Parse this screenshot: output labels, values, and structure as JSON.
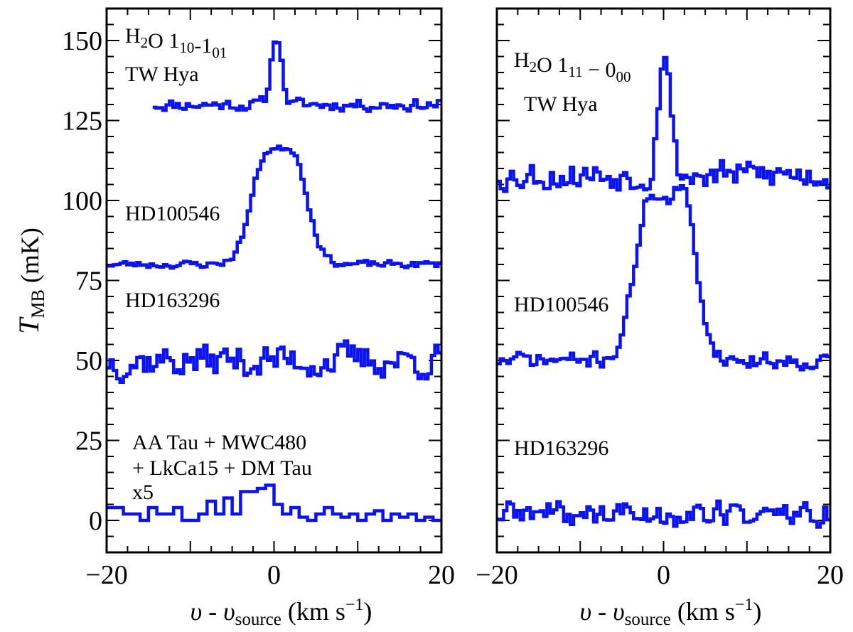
{
  "chart_data": [
    {
      "type": "line",
      "panel": "left",
      "xlim": [
        -20,
        20
      ],
      "ylim": [
        -10,
        160
      ],
      "xticks": [
        -20,
        0,
        20
      ],
      "yticks": [
        0,
        25,
        50,
        75,
        100,
        125,
        150
      ],
      "xtick_labels": [
        "−20",
        "0",
        "20"
      ],
      "ytick_labels": [
        "0",
        "25",
        "50",
        "75",
        "100",
        "125",
        "150"
      ],
      "ylabel": {
        "main": "T",
        "sub": "MB",
        "unit": "(mK)"
      },
      "xlabel": {
        "v": "υ - υ",
        "sub": "source",
        "unit": "(km s",
        "exp": "−1",
        "close": ")"
      },
      "annotations": [
        {
          "id": "l-line",
          "parts": [
            {
              "t": "H"
            },
            {
              "t": "2",
              "s": "sub"
            },
            {
              "t": "O 1"
            },
            {
              "t": "10",
              "s": "sub"
            },
            {
              "t": "-1"
            },
            {
              "t": "01",
              "s": "sub"
            }
          ]
        },
        {
          "id": "l-tw",
          "parts": [
            {
              "t": "TW Hya"
            }
          ]
        },
        {
          "id": "l-hd100",
          "parts": [
            {
              "t": "HD100546"
            }
          ]
        },
        {
          "id": "l-hd163",
          "parts": [
            {
              "t": "HD163296"
            }
          ]
        },
        {
          "id": "l-stack1",
          "parts": [
            {
              "t": "AA Tau + MWC480"
            }
          ]
        },
        {
          "id": "l-stack2",
          "parts": [
            {
              "t": "+ LkCa15 + DM Tau"
            }
          ]
        },
        {
          "id": "l-stack3",
          "parts": [
            {
              "t": "x5"
            }
          ]
        }
      ],
      "series": [
        {
          "name": "TW Hya",
          "x_start": -14.5,
          "x_end": 20,
          "baseline": 130,
          "amp": 3.0,
          "spike_x": 0.3,
          "spike_w": 0.6,
          "spike_h": 22,
          "seed": 11
        },
        {
          "name": "HD100546",
          "x_start": -20,
          "x_end": 20,
          "baseline": 80,
          "amp": 1.8,
          "peaks": [
            {
              "x": -1.2,
              "w": 1.6,
              "h": 23
            },
            {
              "x": 2.5,
              "w": 1.6,
              "h": 24
            }
          ],
          "bridge": 12,
          "seed": 23
        },
        {
          "name": "HD163296",
          "x_start": -20,
          "x_end": 20,
          "baseline": 50,
          "amp": 8.5,
          "seed": 37
        },
        {
          "name": "AA Tau + MWC480 + LkCa15 + DM Tau x5",
          "x_start": -20,
          "x_end": 20,
          "step_values": [
            4,
            4,
            2,
            2,
            0,
            4,
            2,
            2,
            4,
            0,
            0,
            2,
            6,
            2,
            7,
            2,
            9,
            9,
            10,
            11,
            5,
            2,
            4,
            1,
            0,
            2,
            4,
            2,
            1,
            2,
            0,
            2,
            3,
            0,
            2,
            1,
            2,
            0,
            1,
            0
          ]
        }
      ]
    },
    {
      "type": "line",
      "panel": "right",
      "xlim": [
        -20,
        20
      ],
      "ylim": [
        -10,
        160
      ],
      "xticks": [
        -20,
        0,
        20
      ],
      "xtick_labels": [
        "−20",
        "0",
        "20"
      ],
      "xlabel": {
        "v": "υ - υ",
        "sub": "source",
        "unit": "(km s",
        "exp": "−1",
        "close": ")"
      },
      "annotations": [
        {
          "id": "r-line",
          "parts": [
            {
              "t": "H"
            },
            {
              "t": "2",
              "s": "sub"
            },
            {
              "t": "O 1"
            },
            {
              "t": "11",
              "s": "sub"
            },
            {
              "t": " − 0"
            },
            {
              "t": "00",
              "s": "sub"
            }
          ]
        },
        {
          "id": "r-tw",
          "parts": [
            {
              "t": "TW Hya"
            }
          ]
        },
        {
          "id": "r-hd100",
          "parts": [
            {
              "t": "HD100546"
            }
          ]
        },
        {
          "id": "r-hd163",
          "parts": [
            {
              "t": "HD163296"
            }
          ]
        }
      ],
      "series": [
        {
          "name": "TW Hya",
          "x_start": -20,
          "x_end": 20,
          "baseline": 108,
          "amp": 7.5,
          "spike_x": 0.1,
          "spike_w": 0.7,
          "spike_h": 40,
          "seed": 53
        },
        {
          "name": "HD100546",
          "x_start": -20,
          "x_end": 20,
          "baseline": 50,
          "amp": 4.0,
          "peaks": [
            {
              "x": -1.8,
              "w": 1.7,
              "h": 38
            },
            {
              "x": 2.5,
              "w": 1.5,
              "h": 35
            }
          ],
          "bridge": 20,
          "seed": 71
        },
        {
          "name": "HD163296",
          "x_start": -20,
          "x_end": 20,
          "baseline": 2,
          "amp": 6.5,
          "seed": 89
        }
      ]
    }
  ]
}
